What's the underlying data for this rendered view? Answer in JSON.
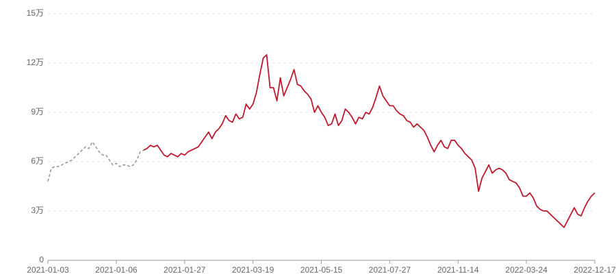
{
  "chart_data": {
    "type": "line",
    "categories": [
      "2021-01-03",
      null,
      null,
      null,
      null,
      null,
      null,
      null,
      null,
      null,
      null,
      null,
      null,
      null,
      null,
      null,
      null,
      null,
      null,
      null,
      "2021-01-06",
      null,
      null,
      null,
      null,
      null,
      null,
      null,
      null,
      null,
      null,
      null,
      null,
      null,
      null,
      null,
      null,
      null,
      null,
      null,
      "2021-01-27",
      null,
      null,
      null,
      null,
      null,
      null,
      null,
      null,
      null,
      null,
      null,
      null,
      null,
      null,
      null,
      null,
      null,
      null,
      null,
      "2021-03-19",
      null,
      null,
      null,
      null,
      null,
      null,
      null,
      null,
      null,
      null,
      null,
      null,
      null,
      null,
      null,
      null,
      null,
      null,
      null,
      "2021-05-15",
      null,
      null,
      null,
      null,
      null,
      null,
      null,
      null,
      null,
      null,
      null,
      null,
      null,
      null,
      null,
      null,
      null,
      null,
      null,
      "2021-07-27",
      null,
      null,
      null,
      null,
      null,
      null,
      null,
      null,
      null,
      null,
      null,
      null,
      null,
      null,
      null,
      null,
      null,
      null,
      null,
      "2021-11-14",
      null,
      null,
      null,
      null,
      null,
      null,
      null,
      null,
      null,
      null,
      null,
      null,
      null,
      null,
      null,
      null,
      null,
      null,
      null,
      "2022-03-24",
      null,
      null,
      null,
      null,
      null,
      null,
      null,
      null,
      null,
      null,
      null,
      null,
      null,
      null,
      null,
      null,
      null,
      null,
      null,
      "2022-12-17"
    ],
    "series": [
      {
        "color": "#999999",
        "dashed": true,
        "values": [
          48000,
          56000,
          57000,
          57000,
          58000,
          59000,
          60000,
          61000,
          63000,
          65000,
          67000,
          69000,
          68000,
          72000,
          69000,
          66000,
          64000,
          64000,
          61000,
          58000,
          59000,
          57000,
          58000,
          58000,
          57000,
          58000,
          61000,
          66000,
          67000,
          null,
          null,
          null,
          null,
          null,
          null,
          null,
          null,
          null,
          null,
          null,
          null,
          null,
          null,
          null,
          null,
          null,
          null,
          null,
          null,
          null,
          null,
          null,
          null,
          null,
          null,
          null,
          null,
          null,
          null,
          null,
          null,
          null,
          null,
          null,
          null,
          null,
          null,
          null,
          null,
          null,
          null,
          null,
          null,
          null,
          null,
          null,
          null,
          null,
          null,
          null,
          null,
          null,
          null,
          null,
          null,
          null,
          null,
          null,
          null,
          null,
          null,
          null,
          null,
          null,
          null,
          null,
          null,
          null,
          null,
          null,
          null,
          null,
          null,
          null,
          null,
          null,
          null,
          null,
          null,
          null,
          null,
          null,
          null,
          null,
          null,
          null,
          null,
          null,
          null,
          null,
          null,
          null,
          null,
          null,
          null,
          null,
          null,
          null,
          null,
          null,
          null,
          null,
          null,
          null,
          null,
          null,
          null,
          null,
          null,
          null,
          null,
          null,
          null,
          null,
          null,
          null,
          null,
          null,
          null,
          null,
          null,
          null,
          null,
          null,
          null,
          null,
          null,
          null,
          null,
          null,
          null
        ]
      },
      {
        "color": "#c0182c",
        "dashed": false,
        "values": [
          null,
          null,
          null,
          null,
          null,
          null,
          null,
          null,
          null,
          null,
          null,
          null,
          null,
          null,
          null,
          null,
          null,
          null,
          null,
          null,
          null,
          null,
          null,
          null,
          null,
          null,
          null,
          null,
          67000,
          68000,
          70000,
          69000,
          70000,
          67000,
          64000,
          63000,
          65000,
          64000,
          63000,
          65000,
          64000,
          66000,
          67000,
          68000,
          69000,
          72000,
          75000,
          78000,
          74000,
          78000,
          80000,
          83000,
          88000,
          85000,
          84000,
          89000,
          86000,
          87000,
          95000,
          92000,
          95000,
          102000,
          113000,
          123000,
          125000,
          105000,
          105000,
          97000,
          111000,
          100000,
          105000,
          110000,
          116000,
          107000,
          106000,
          103000,
          101000,
          98000,
          90000,
          94000,
          90000,
          87000,
          82000,
          83000,
          89000,
          82000,
          85000,
          92000,
          90000,
          87000,
          83000,
          87000,
          86000,
          90000,
          89000,
          93000,
          99000,
          106000,
          100000,
          97000,
          94000,
          94000,
          91000,
          89000,
          88000,
          85000,
          84000,
          81000,
          83000,
          81000,
          79000,
          75000,
          70000,
          66000,
          70000,
          73000,
          69000,
          68000,
          73000,
          73000,
          70000,
          68000,
          65000,
          63000,
          61000,
          56000,
          42000,
          50000,
          54000,
          58000,
          53000,
          55000,
          56000,
          55000,
          53000,
          49000,
          48000,
          47000,
          44000,
          39000,
          39000,
          41000,
          38000,
          33000,
          31000,
          30000,
          30000,
          28000,
          26000,
          24000,
          22000,
          20000,
          24000,
          28000,
          32000,
          28000,
          27000,
          32000,
          36000,
          39000,
          41000
        ]
      }
    ],
    "ylim": [
      0,
      150000
    ],
    "yticks": [
      0,
      {
        "value": 30000,
        "label": "3万"
      },
      {
        "value": 60000,
        "label": "6万"
      },
      {
        "value": 90000,
        "label": "9万"
      },
      {
        "value": 120000,
        "label": "12万"
      },
      {
        "value": 150000,
        "label": "15万"
      }
    ],
    "grid": true
  }
}
